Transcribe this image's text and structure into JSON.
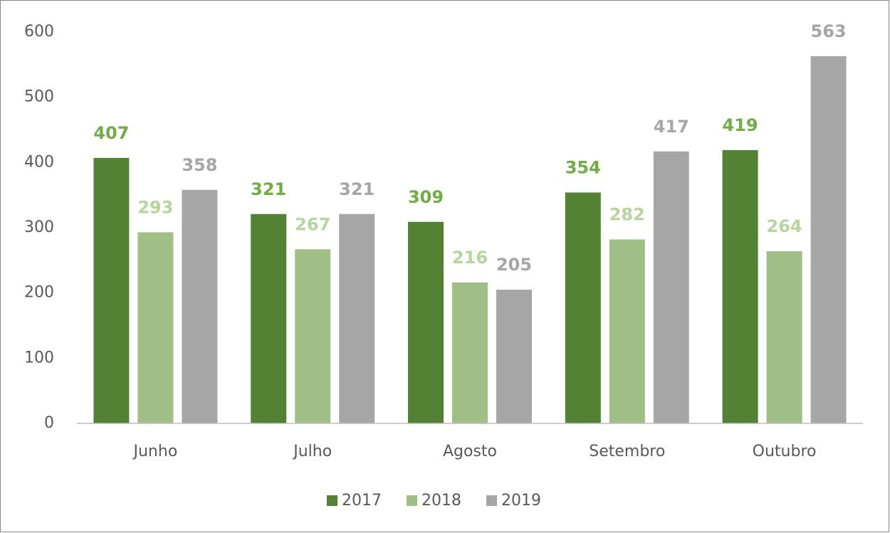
{
  "chart_data": {
    "type": "bar",
    "categories": [
      "Junho",
      "Julho",
      "Agosto",
      "Setembro",
      "Outubro"
    ],
    "series": [
      {
        "name": "2017",
        "color": "#548235",
        "label_color": "#70ad47",
        "values": [
          407,
          321,
          309,
          354,
          419
        ]
      },
      {
        "name": "2018",
        "color": "#a0bf86",
        "label_color": "#b5d69c",
        "values": [
          293,
          267,
          216,
          282,
          264
        ]
      },
      {
        "name": "2019",
        "color": "#a6a6a6",
        "label_color": "#a6a6a6",
        "values": [
          358,
          321,
          205,
          417,
          563
        ]
      }
    ],
    "ylim": [
      0,
      600
    ],
    "yticks": [
      0,
      100,
      200,
      300,
      400,
      500,
      600
    ],
    "grid": false,
    "legend": "bottom"
  }
}
